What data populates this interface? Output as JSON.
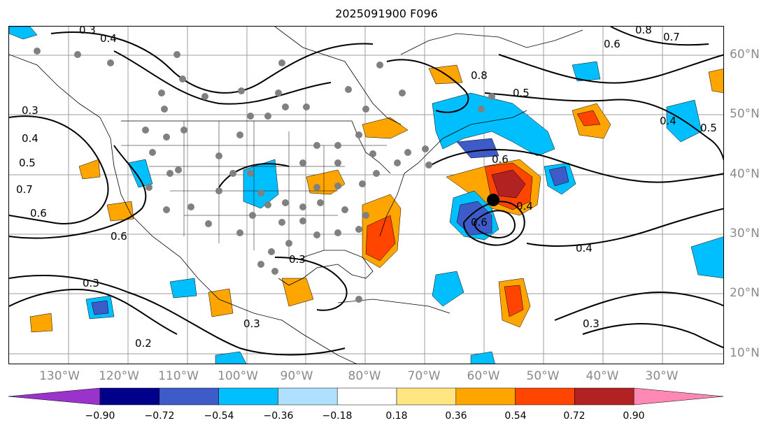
{
  "title": "2025091900 F096",
  "lon_labels": [
    "130°W",
    "120°W",
    "110°W",
    "100°W",
    "90°W",
    "80°W",
    "70°W",
    "60°W",
    "50°W",
    "40°W",
    "30°W"
  ],
  "lat_labels": [
    "60°N",
    "50°N",
    "40°N",
    "30°N",
    "20°N",
    "10°N"
  ],
  "contour_labels": [
    "0.3",
    "0.4",
    "0.5",
    "0.6",
    "0.7",
    "0.8",
    "0.2"
  ],
  "colorbar": {
    "colors": [
      "#9933cc",
      "#00008b",
      "#3d5cc9",
      "#00bfff",
      "#b0e0ff",
      "#ffffff",
      "#ffe680",
      "#ffa500",
      "#ff4500",
      "#b22222",
      "#ff88b4"
    ],
    "ticks": [
      "−0.90",
      "−0.72",
      "−0.54",
      "−0.36",
      "−0.18",
      "0.18",
      "0.36",
      "0.54",
      "0.72",
      "0.90"
    ]
  }
}
